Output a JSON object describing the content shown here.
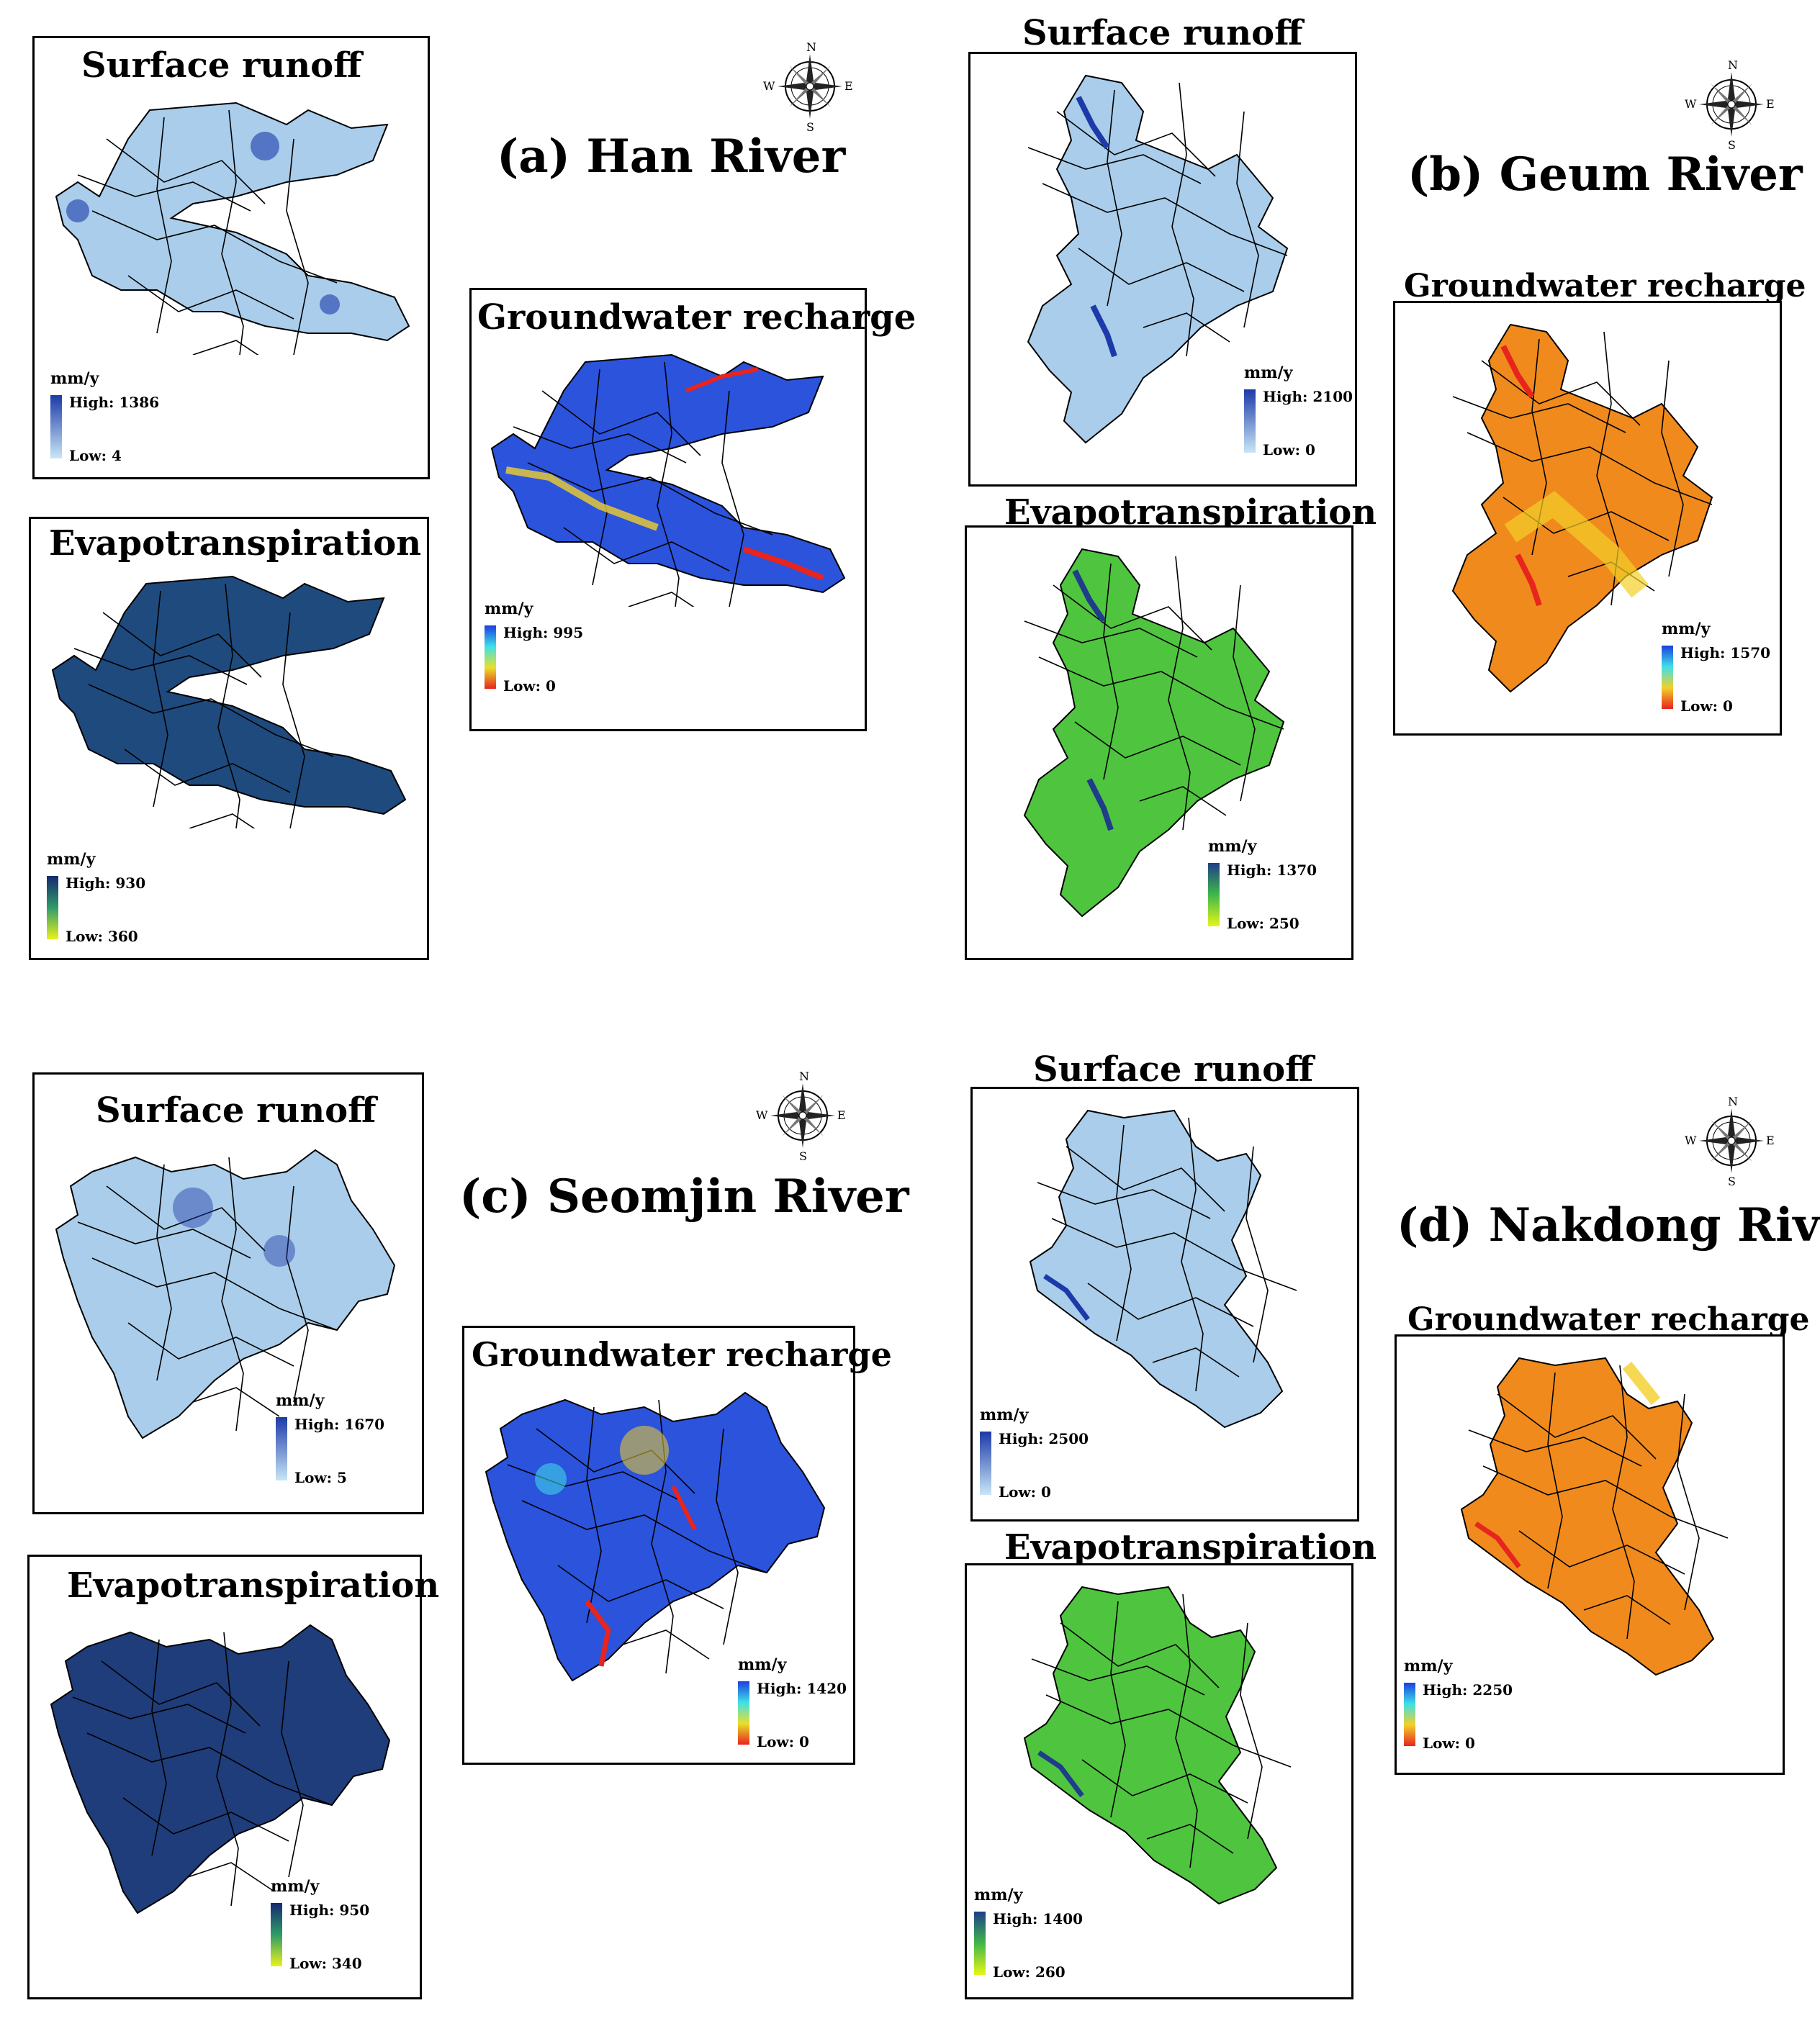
{
  "colors": {
    "runoff": {
      "high": "#1c3aa8",
      "low": "#c9e6f6",
      "fill": "#a9cdea"
    },
    "evap_dark": {
      "high": "#142a6e",
      "low": "#e8f21a",
      "fill": "#1f4a7d"
    },
    "evap_green": {
      "high": "#1f3d8a",
      "low": "#e6f518",
      "fill": "#4fc43f"
    },
    "gw_blue": {
      "high": "#1a3fe0",
      "mid": "#e8e02a",
      "low": "#e8241e",
      "fill": "#2b53dc"
    },
    "gw_orange": {
      "high": "#1a3fe0",
      "mid": "#f2d02a",
      "low": "#e8241e",
      "fill": "#f08a1c"
    }
  },
  "compass_letters": {
    "n": "N",
    "s": "S",
    "e": "E",
    "w": "W"
  },
  "rivers": [
    {
      "title": "(a) Han River",
      "surface_runoff": {
        "title": "Surface runoff",
        "unit": "mm/y",
        "high": "High: 1386",
        "low": "Low: 4"
      },
      "evapotranspiration": {
        "title": "Evapotranspiration",
        "unit": "mm/y",
        "high": "High: 930",
        "low": "Low: 360"
      },
      "groundwater_recharge": {
        "title": "Groundwater recharge",
        "unit": "mm/y",
        "high": "High: 995",
        "low": "Low: 0"
      }
    },
    {
      "title": "(b) Geum River",
      "surface_runoff": {
        "title": "Surface runoff",
        "unit": "mm/y",
        "high": "High: 2100",
        "low": "Low: 0"
      },
      "evapotranspiration": {
        "title": "Evapotranspiration",
        "unit": "mm/y",
        "high": "High: 1370",
        "low": "Low: 250"
      },
      "groundwater_recharge": {
        "title": "Groundwater recharge",
        "unit": "mm/y",
        "high": "High: 1570",
        "low": "Low: 0"
      }
    },
    {
      "title": "(c) Seomjin River",
      "surface_runoff": {
        "title": "Surface runoff",
        "unit": "mm/y",
        "high": "High: 1670",
        "low": "Low: 5"
      },
      "evapotranspiration": {
        "title": "Evapotranspiration",
        "unit": "mm/y",
        "high": "High: 950",
        "low": "Low: 340"
      },
      "groundwater_recharge": {
        "title": "Groundwater recharge",
        "unit": "mm/y",
        "high": "High: 1420",
        "low": "Low: 0"
      }
    },
    {
      "title": "(d) Nakdong River",
      "surface_runoff": {
        "title": "Surface runoff",
        "unit": "mm/y",
        "high": "High: 2500",
        "low": "Low: 0"
      },
      "evapotranspiration": {
        "title": "Evapotranspiration",
        "unit": "mm/y",
        "high": "High: 1400",
        "low": "Low: 260"
      },
      "groundwater_recharge": {
        "title": "Groundwater recharge",
        "unit": "mm/y",
        "high": "High: 2250",
        "low": "Low: 0"
      }
    }
  ]
}
